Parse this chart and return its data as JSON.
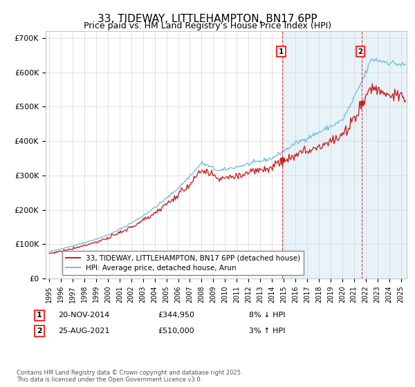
{
  "title": "33, TIDEWAY, LITTLEHAMPTON, BN17 6PP",
  "subtitle": "Price paid vs. HM Land Registry's House Price Index (HPI)",
  "yticks_labels": [
    "£0",
    "£100K",
    "£200K",
    "£300K",
    "£400K",
    "£500K",
    "£600K",
    "£700K"
  ],
  "yticks_values": [
    0,
    100000,
    200000,
    300000,
    400000,
    500000,
    600000,
    700000
  ],
  "ylim": [
    0,
    720000
  ],
  "xlim_start": 1995.0,
  "xlim_end": 2025.5,
  "hpi_color": "#7bbde0",
  "hpi_fill_color": "#d8ecf8",
  "price_color": "#cc2222",
  "vline_color": "#cc2222",
  "marker1_x": 2014.88,
  "marker1_y": 344950,
  "marker1_label": "1",
  "marker1_date": "20-NOV-2014",
  "marker1_price": "£344,950",
  "marker1_hpi": "8% ↓ HPI",
  "marker2_x": 2021.65,
  "marker2_y": 510000,
  "marker2_label": "2",
  "marker2_date": "25-AUG-2021",
  "marker2_price": "£510,000",
  "marker2_hpi": "3% ↑ HPI",
  "legend_line1": "33, TIDEWAY, LITTLEHAMPTON, BN17 6PP (detached house)",
  "legend_line2": "HPI: Average price, detached house, Arun",
  "footer": "Contains HM Land Registry data © Crown copyright and database right 2025.\nThis data is licensed under the Open Government Licence v3.0.",
  "background_color": "#ffffff",
  "grid_color": "#cccccc"
}
